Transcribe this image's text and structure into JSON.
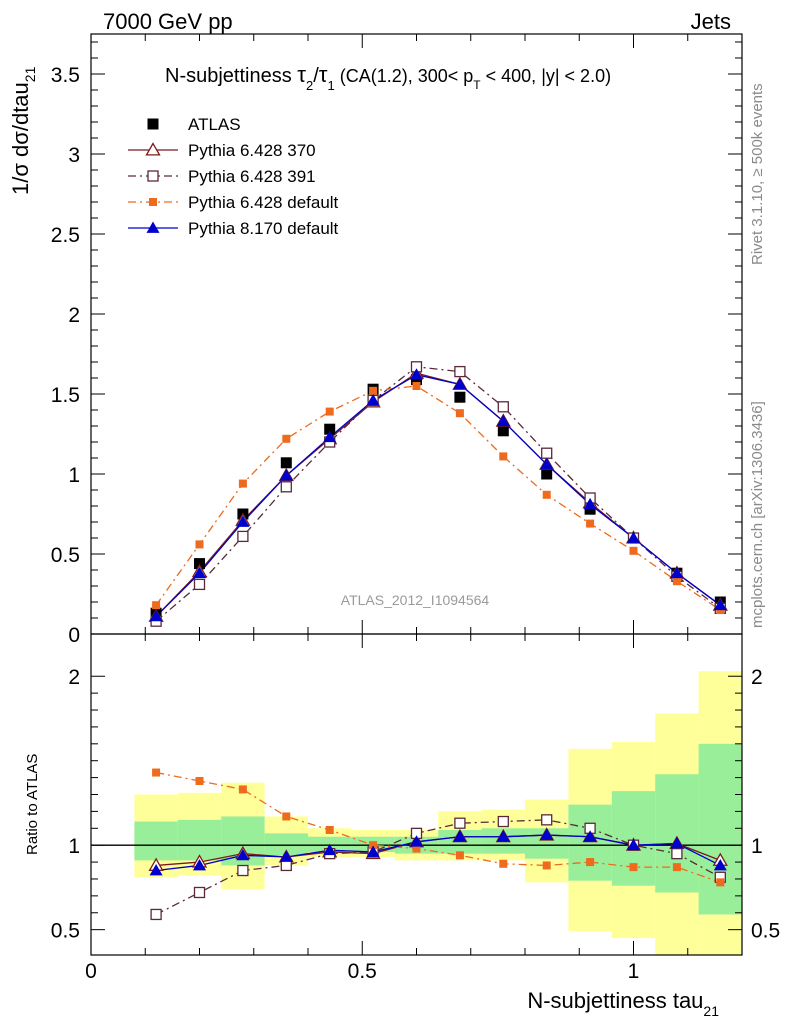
{
  "header": {
    "left": "7000 GeV pp",
    "right": "Jets"
  },
  "title": {
    "prefix": "N-subjettiness ",
    "tau": "τ",
    "sub2": "2",
    "slash": "/",
    "sub1": "1",
    "rest_a": " (CA(1.2), 300< p",
    "sub_T": "T",
    "rest_b": " < 400, |y| < 2.0)"
  },
  "side_texts": {
    "rivet": "Rivet 3.1.10, ≥ 500k events",
    "mcplots": "mcplots.cern.ch [arXiv:1306.3436]"
  },
  "analysis_label": "ATLAS_2012_I1094564",
  "axes": {
    "ylabel_main": "1/σ dσ/dtau",
    "ylabel_main_sub": "21",
    "ylabel_ratio": "Ratio to ATLAS",
    "xlabel": "N-subjettiness tau",
    "xlabel_sub": "21"
  },
  "chart_data": [
    {
      "type": "scatter",
      "panel": "main",
      "xlim": [
        0,
        1.2
      ],
      "ylim": [
        0,
        3.75
      ],
      "yticks": [
        {
          "v": 0,
          "label": "0"
        },
        {
          "v": 0.5,
          "label": "0.5"
        },
        {
          "v": 1,
          "label": "1"
        },
        {
          "v": 1.5,
          "label": "1.5"
        },
        {
          "v": 2,
          "label": "2"
        },
        {
          "v": 2.5,
          "label": "2.5"
        },
        {
          "v": 3,
          "label": "3"
        },
        {
          "v": 3.5,
          "label": "3.5"
        }
      ],
      "yminor_step": 0.1,
      "xmajor_step": 0.5,
      "xminor_step": 0.1,
      "legend_position": "top-left",
      "x": [
        0.12,
        0.2,
        0.28,
        0.36,
        0.44,
        0.52,
        0.6,
        0.68,
        0.76,
        0.84,
        0.92,
        1.0,
        1.08,
        1.16
      ],
      "series": [
        {
          "name": "ATLAS",
          "color": "#000000",
          "marker": "filled-square",
          "line": "none",
          "values": [
            0.13,
            0.44,
            0.75,
            1.07,
            1.28,
            1.53,
            1.59,
            1.48,
            1.27,
            1.0,
            0.78,
            0.6,
            0.38,
            0.2
          ]
        },
        {
          "name": "Pythia 6.428 370",
          "color": "#7a1b1b",
          "marker": "open-triangle",
          "line": "solid",
          "values": [
            0.11,
            0.39,
            0.71,
            0.99,
            1.22,
            1.45,
            1.63,
            1.56,
            1.33,
            1.06,
            0.82,
            0.6,
            0.38,
            0.18
          ]
        },
        {
          "name": "Pythia 6.428 391",
          "color": "#5a2a3a",
          "marker": "open-square",
          "line": "dashdot",
          "values": [
            0.08,
            0.31,
            0.61,
            0.92,
            1.2,
            1.46,
            1.67,
            1.64,
            1.42,
            1.13,
            0.85,
            0.6,
            0.36,
            0.16
          ]
        },
        {
          "name": "Pythia 6.428 default",
          "color": "#ee6a1c",
          "marker": "filled-small-square",
          "line": "dashdot",
          "values": [
            0.18,
            0.56,
            0.94,
            1.22,
            1.39,
            1.52,
            1.55,
            1.38,
            1.11,
            0.87,
            0.69,
            0.52,
            0.33,
            0.15
          ]
        },
        {
          "name": "Pythia 8.170 default",
          "color": "#0000cc",
          "marker": "filled-triangle",
          "line": "solid",
          "values": [
            0.11,
            0.38,
            0.7,
            0.99,
            1.23,
            1.46,
            1.62,
            1.56,
            1.33,
            1.06,
            0.81,
            0.6,
            0.38,
            0.18
          ]
        }
      ]
    },
    {
      "type": "scatter",
      "panel": "ratio",
      "xlim": [
        0,
        1.2
      ],
      "ylim": [
        0.35,
        2.25
      ],
      "yticks": [
        {
          "v": 0.5,
          "label": "0.5"
        },
        {
          "v": 1,
          "label": "1"
        },
        {
          "v": 2,
          "label": "2"
        }
      ],
      "yminor": [
        0.6,
        0.7,
        0.8,
        0.9,
        1.1,
        1.2,
        1.3,
        1.4,
        1.5,
        1.6,
        1.7,
        1.8,
        1.9
      ],
      "xticks": [
        {
          "v": 0,
          "label": "0"
        },
        {
          "v": 0.5,
          "label": "0.5"
        },
        {
          "v": 1,
          "label": "1"
        }
      ],
      "reference": 1,
      "x": [
        0.12,
        0.2,
        0.28,
        0.36,
        0.44,
        0.52,
        0.6,
        0.68,
        0.76,
        0.84,
        0.92,
        1.0,
        1.08,
        1.16
      ],
      "bins": [
        [
          0.08,
          0.16
        ],
        [
          0.16,
          0.24
        ],
        [
          0.24,
          0.32
        ],
        [
          0.32,
          0.4
        ],
        [
          0.4,
          0.48
        ],
        [
          0.48,
          0.56
        ],
        [
          0.56,
          0.64
        ],
        [
          0.64,
          0.72
        ],
        [
          0.72,
          0.8
        ],
        [
          0.8,
          0.88
        ],
        [
          0.88,
          0.96
        ],
        [
          0.96,
          1.04
        ],
        [
          1.04,
          1.12
        ],
        [
          1.12,
          1.2
        ]
      ],
      "bands": {
        "outer": {
          "color": "#ffff99",
          "lo": [
            0.81,
            0.82,
            0.74,
            0.88,
            0.93,
            0.93,
            0.91,
            0.91,
            0.91,
            0.78,
            0.49,
            0.45,
            0.35,
            0.35
          ],
          "hi": [
            1.3,
            1.31,
            1.37,
            1.17,
            1.1,
            1.09,
            1.09,
            1.2,
            1.21,
            1.27,
            1.57,
            1.61,
            1.78,
            2.03
          ]
        },
        "inner": {
          "color": "#99ee99",
          "lo": [
            0.91,
            0.91,
            0.88,
            0.94,
            0.96,
            0.96,
            0.95,
            0.95,
            0.95,
            0.92,
            0.79,
            0.76,
            0.72,
            0.59
          ],
          "hi": [
            1.14,
            1.15,
            1.17,
            1.07,
            1.05,
            1.05,
            1.05,
            1.09,
            1.1,
            1.1,
            1.24,
            1.32,
            1.42,
            1.6
          ]
        }
      },
      "series": [
        {
          "name": "Pythia 6.428 370",
          "color": "#7a1b1b",
          "marker": "open-triangle",
          "line": "solid",
          "values": [
            0.88,
            0.9,
            0.95,
            0.93,
            0.96,
            0.95,
            1.02,
            1.05,
            1.05,
            1.06,
            1.05,
            1.0,
            1.01,
            0.91
          ]
        },
        {
          "name": "Pythia 6.428 391",
          "color": "#5a2a3a",
          "marker": "open-square",
          "line": "dashdot",
          "values": [
            0.59,
            0.72,
            0.85,
            0.88,
            0.95,
            0.96,
            1.07,
            1.13,
            1.14,
            1.15,
            1.1,
            1.0,
            0.95,
            0.81
          ]
        },
        {
          "name": "Pythia 6.428 default",
          "color": "#ee6a1c",
          "marker": "filled-small-square",
          "line": "dashdot",
          "values": [
            1.43,
            1.38,
            1.33,
            1.17,
            1.09,
            1.0,
            0.98,
            0.94,
            0.89,
            0.88,
            0.9,
            0.87,
            0.87,
            0.78
          ]
        },
        {
          "name": "Pythia 8.170 default",
          "color": "#0000cc",
          "marker": "filled-triangle",
          "line": "solid",
          "values": [
            0.85,
            0.88,
            0.94,
            0.93,
            0.97,
            0.96,
            1.02,
            1.05,
            1.05,
            1.06,
            1.05,
            1.0,
            1.01,
            0.88
          ]
        }
      ]
    }
  ]
}
